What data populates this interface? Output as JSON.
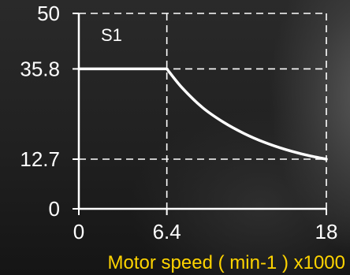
{
  "chart_data": {
    "type": "line",
    "series": [
      {
        "name": "S1",
        "x": [
          0,
          6.4,
          7.5,
          9.0,
          10.5,
          12.0,
          13.5,
          15.0,
          16.5,
          18
        ],
        "y": [
          35.8,
          35.8,
          31.0,
          25.9,
          22.2,
          19.3,
          17.0,
          15.2,
          13.8,
          12.7
        ]
      }
    ],
    "xlabel": "Motor speed ( min-1 ) x1000",
    "ylabel": "",
    "xlim": [
      0,
      18
    ],
    "ylim": [
      0,
      50
    ],
    "xticks": [
      0,
      6.4,
      18
    ],
    "xtick_labels": [
      "0",
      "6.4",
      "18"
    ],
    "yticks": [
      0,
      12.7,
      35.8,
      50
    ],
    "ytick_labels": [
      "0",
      "12.7",
      "35.8",
      "50"
    ],
    "reference_lines": {
      "horizontal": [
        12.7,
        35.8,
        50
      ],
      "vertical": [
        6.4,
        18
      ]
    },
    "grid": false,
    "legend": "inline-top-left",
    "colors": {
      "curve": "#ffffff",
      "axes": "#ffffff",
      "reference_lines": "#ffffff",
      "xlabel": "#ffd400"
    }
  }
}
